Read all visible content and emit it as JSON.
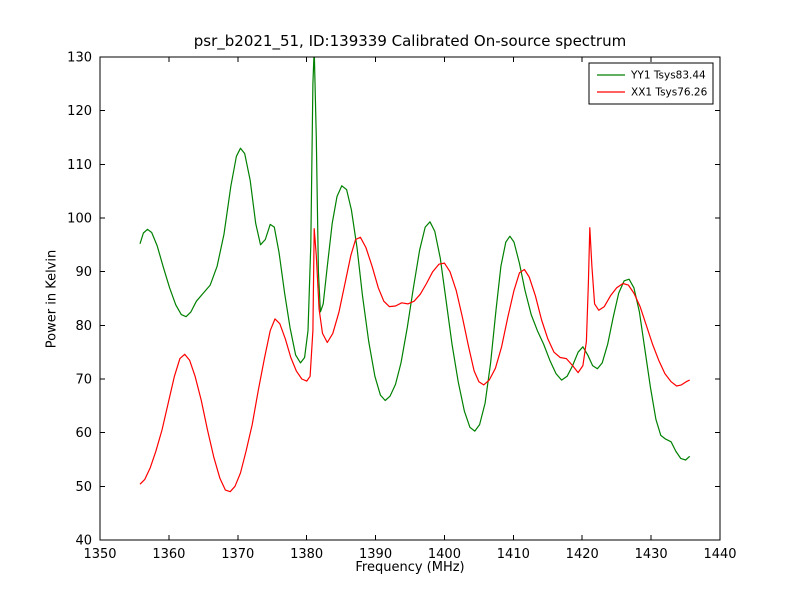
{
  "figure": {
    "title": "psr_b2021_51, ID:139339 Calibrated On-source spectrum",
    "xlabel": "Frequency (MHz)",
    "ylabel": "Power in Kelvin"
  },
  "chart_data": {
    "type": "line",
    "title": "psr_b2021_51, ID:139339 Calibrated On-source spectrum",
    "xlabel": "Frequency (MHz)",
    "ylabel": "Power in Kelvin",
    "xlim": [
      1350,
      1440
    ],
    "ylim": [
      40,
      130
    ],
    "xticks": [
      1350,
      1360,
      1370,
      1380,
      1390,
      1400,
      1410,
      1420,
      1430,
      1440
    ],
    "yticks": [
      40,
      50,
      60,
      70,
      80,
      90,
      100,
      110,
      120,
      130
    ],
    "grid": false,
    "legend": {
      "position": "upper right",
      "entries": [
        "YY1 Tsys83.44",
        "XX1 Tsys76.26"
      ]
    },
    "series": [
      {
        "name": "YY1 Tsys83.44",
        "color": "#008000",
        "points": [
          [
            1355.8,
            95.2
          ],
          [
            1356.3,
            97.2
          ],
          [
            1356.9,
            97.9
          ],
          [
            1357.5,
            97.3
          ],
          [
            1358.3,
            94.8
          ],
          [
            1359.2,
            90.8
          ],
          [
            1360.1,
            87.0
          ],
          [
            1361.0,
            83.8
          ],
          [
            1361.8,
            82.0
          ],
          [
            1362.5,
            81.6
          ],
          [
            1363.2,
            82.5
          ],
          [
            1364.0,
            84.5
          ],
          [
            1365.0,
            86.0
          ],
          [
            1366.0,
            87.5
          ],
          [
            1367.0,
            91.0
          ],
          [
            1368.0,
            97.0
          ],
          [
            1369.0,
            106.0
          ],
          [
            1369.8,
            111.5
          ],
          [
            1370.4,
            113.0
          ],
          [
            1371.0,
            112.0
          ],
          [
            1371.8,
            107.0
          ],
          [
            1372.6,
            99.0
          ],
          [
            1373.3,
            95.0
          ],
          [
            1374.0,
            96.0
          ],
          [
            1374.7,
            98.8
          ],
          [
            1375.3,
            98.3
          ],
          [
            1376.0,
            93.5
          ],
          [
            1376.8,
            86.0
          ],
          [
            1377.6,
            79.5
          ],
          [
            1378.4,
            74.5
          ],
          [
            1379.1,
            73.0
          ],
          [
            1379.7,
            74.0
          ],
          [
            1380.2,
            79.0
          ],
          [
            1380.6,
            95.0
          ],
          [
            1380.9,
            125.0
          ],
          [
            1381.1,
            131.5
          ],
          [
            1381.4,
            115.0
          ],
          [
            1381.7,
            90.0
          ],
          [
            1382.0,
            82.5
          ],
          [
            1382.4,
            84.0
          ],
          [
            1383.0,
            91.0
          ],
          [
            1383.7,
            99.0
          ],
          [
            1384.4,
            104.0
          ],
          [
            1385.1,
            106.0
          ],
          [
            1385.8,
            105.3
          ],
          [
            1386.5,
            101.5
          ],
          [
            1387.3,
            94.5
          ],
          [
            1388.1,
            85.5
          ],
          [
            1389.0,
            77.0
          ],
          [
            1389.9,
            70.5
          ],
          [
            1390.7,
            67.0
          ],
          [
            1391.4,
            66.0
          ],
          [
            1392.1,
            66.8
          ],
          [
            1392.9,
            69.0
          ],
          [
            1393.7,
            73.0
          ],
          [
            1394.6,
            79.5
          ],
          [
            1395.5,
            87.0
          ],
          [
            1396.4,
            94.0
          ],
          [
            1397.2,
            98.3
          ],
          [
            1397.9,
            99.3
          ],
          [
            1398.6,
            97.5
          ],
          [
            1399.4,
            92.5
          ],
          [
            1400.2,
            85.0
          ],
          [
            1401.1,
            76.5
          ],
          [
            1402.0,
            69.5
          ],
          [
            1402.9,
            64.0
          ],
          [
            1403.7,
            61.0
          ],
          [
            1404.4,
            60.3
          ],
          [
            1405.1,
            61.5
          ],
          [
            1405.9,
            65.5
          ],
          [
            1406.7,
            73.0
          ],
          [
            1407.5,
            83.0
          ],
          [
            1408.2,
            91.0
          ],
          [
            1408.9,
            95.5
          ],
          [
            1409.5,
            96.6
          ],
          [
            1410.1,
            95.5
          ],
          [
            1410.9,
            91.5
          ],
          [
            1411.7,
            86.5
          ],
          [
            1412.6,
            82.0
          ],
          [
            1413.5,
            79.0
          ],
          [
            1414.4,
            76.5
          ],
          [
            1415.3,
            73.5
          ],
          [
            1416.2,
            71.0
          ],
          [
            1417.0,
            69.8
          ],
          [
            1417.8,
            70.5
          ],
          [
            1418.6,
            72.5
          ],
          [
            1419.4,
            75.0
          ],
          [
            1420.1,
            76.0
          ],
          [
            1420.8,
            74.5
          ],
          [
            1421.5,
            72.5
          ],
          [
            1422.2,
            71.9
          ],
          [
            1422.9,
            73.0
          ],
          [
            1423.7,
            76.5
          ],
          [
            1424.5,
            81.5
          ],
          [
            1425.3,
            86.0
          ],
          [
            1426.1,
            88.3
          ],
          [
            1426.8,
            88.6
          ],
          [
            1427.5,
            87.0
          ],
          [
            1428.3,
            82.5
          ],
          [
            1429.1,
            75.5
          ],
          [
            1429.9,
            68.5
          ],
          [
            1430.7,
            62.5
          ],
          [
            1431.4,
            59.5
          ],
          [
            1432.1,
            58.8
          ],
          [
            1432.9,
            58.3
          ],
          [
            1433.6,
            56.5
          ],
          [
            1434.3,
            55.2
          ],
          [
            1435.0,
            54.9
          ],
          [
            1435.6,
            55.6
          ]
        ]
      },
      {
        "name": "XX1 Tsys76.26",
        "color": "#ff0000",
        "points": [
          [
            1355.8,
            50.4
          ],
          [
            1356.5,
            51.3
          ],
          [
            1357.3,
            53.5
          ],
          [
            1358.1,
            56.5
          ],
          [
            1359.0,
            60.5
          ],
          [
            1359.9,
            65.5
          ],
          [
            1360.8,
            70.5
          ],
          [
            1361.6,
            73.8
          ],
          [
            1362.3,
            74.6
          ],
          [
            1363.0,
            73.5
          ],
          [
            1363.8,
            70.5
          ],
          [
            1364.7,
            66.0
          ],
          [
            1365.6,
            60.5
          ],
          [
            1366.5,
            55.5
          ],
          [
            1367.4,
            51.5
          ],
          [
            1368.2,
            49.3
          ],
          [
            1368.9,
            49.0
          ],
          [
            1369.6,
            50.0
          ],
          [
            1370.4,
            52.5
          ],
          [
            1371.2,
            56.5
          ],
          [
            1372.1,
            61.5
          ],
          [
            1373.0,
            68.0
          ],
          [
            1373.9,
            74.0
          ],
          [
            1374.7,
            79.0
          ],
          [
            1375.4,
            81.2
          ],
          [
            1376.1,
            80.3
          ],
          [
            1376.9,
            77.5
          ],
          [
            1377.7,
            74.0
          ],
          [
            1378.5,
            71.5
          ],
          [
            1379.3,
            70.0
          ],
          [
            1380.0,
            69.6
          ],
          [
            1380.5,
            70.5
          ],
          [
            1380.9,
            79.0
          ],
          [
            1381.1,
            98.0
          ],
          [
            1381.4,
            93.0
          ],
          [
            1381.8,
            83.0
          ],
          [
            1382.3,
            78.5
          ],
          [
            1383.0,
            76.8
          ],
          [
            1383.8,
            78.5
          ],
          [
            1384.7,
            82.5
          ],
          [
            1385.6,
            88.0
          ],
          [
            1386.4,
            93.0
          ],
          [
            1387.1,
            96.0
          ],
          [
            1387.8,
            96.4
          ],
          [
            1388.6,
            94.5
          ],
          [
            1389.5,
            91.0
          ],
          [
            1390.4,
            87.0
          ],
          [
            1391.2,
            84.5
          ],
          [
            1392.0,
            83.5
          ],
          [
            1392.9,
            83.6
          ],
          [
            1393.8,
            84.2
          ],
          [
            1394.7,
            84.0
          ],
          [
            1395.6,
            84.5
          ],
          [
            1396.5,
            85.8
          ],
          [
            1397.4,
            87.8
          ],
          [
            1398.3,
            90.0
          ],
          [
            1399.2,
            91.4
          ],
          [
            1400.0,
            91.6
          ],
          [
            1400.8,
            90.0
          ],
          [
            1401.7,
            86.5
          ],
          [
            1402.6,
            81.5
          ],
          [
            1403.5,
            76.0
          ],
          [
            1404.3,
            71.5
          ],
          [
            1405.0,
            69.5
          ],
          [
            1405.7,
            68.9
          ],
          [
            1406.5,
            69.8
          ],
          [
            1407.4,
            72.0
          ],
          [
            1408.3,
            76.0
          ],
          [
            1409.2,
            81.5
          ],
          [
            1410.1,
            86.5
          ],
          [
            1410.9,
            89.8
          ],
          [
            1411.6,
            90.4
          ],
          [
            1412.3,
            89.0
          ],
          [
            1413.2,
            85.5
          ],
          [
            1414.1,
            81.0
          ],
          [
            1415.0,
            77.5
          ],
          [
            1415.9,
            75.0
          ],
          [
            1416.8,
            74.0
          ],
          [
            1417.7,
            73.8
          ],
          [
            1418.6,
            72.5
          ],
          [
            1419.4,
            71.2
          ],
          [
            1420.1,
            72.5
          ],
          [
            1420.6,
            77.0
          ],
          [
            1420.9,
            88.0
          ],
          [
            1421.1,
            98.2
          ],
          [
            1421.4,
            91.0
          ],
          [
            1421.8,
            84.0
          ],
          [
            1422.4,
            82.8
          ],
          [
            1423.2,
            83.5
          ],
          [
            1424.1,
            85.5
          ],
          [
            1425.0,
            87.0
          ],
          [
            1425.9,
            87.8
          ],
          [
            1426.7,
            87.5
          ],
          [
            1427.5,
            86.0
          ],
          [
            1428.4,
            83.5
          ],
          [
            1429.3,
            80.0
          ],
          [
            1430.2,
            76.5
          ],
          [
            1431.1,
            73.5
          ],
          [
            1432.0,
            71.0
          ],
          [
            1432.9,
            69.5
          ],
          [
            1433.7,
            68.7
          ],
          [
            1434.4,
            68.9
          ],
          [
            1435.1,
            69.5
          ],
          [
            1435.6,
            69.8
          ]
        ]
      }
    ]
  }
}
